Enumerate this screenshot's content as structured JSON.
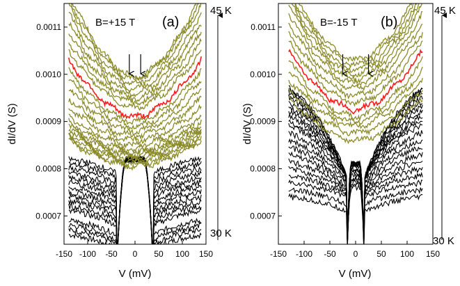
{
  "chart_data": [
    {
      "panel_label": "(a)",
      "type": "line",
      "field_label": "B=+15 T",
      "xlabel": "V (mV)",
      "ylabel": "dI/dV (S)",
      "xlim": [
        -150,
        150
      ],
      "ylim": [
        0.00064,
        0.00115
      ],
      "x_ticks": [
        -150,
        -100,
        -50,
        0,
        50,
        100,
        150
      ],
      "x_tick_labels": [
        "-150",
        "-100",
        "-50",
        "0",
        "50",
        "100",
        "150"
      ],
      "y_ticks": [
        0.0007,
        0.0008,
        0.0009,
        0.001,
        0.0011
      ],
      "y_tick_labels": [
        "0.0007",
        "0.0008",
        "0.0009",
        "0.0010",
        "0.0011"
      ],
      "temperature_top": "45 K",
      "temperature_bottom": "30 K",
      "arrows_x_mv": [
        -12,
        12
      ],
      "gap_half_width_mv": 40,
      "low_temp_curves": {
        "count": 16,
        "color": "#000000",
        "zero_bias_values": [
          0.00082,
          0.00082,
          0.00082,
          0.00082,
          0.00082,
          0.00082,
          0.00082,
          0.00082,
          0.00082,
          0.00082,
          0.00082,
          0.00082,
          0.00082,
          0.00082,
          0.00082,
          0.00082
        ],
        "edge_values": [
          0.00066,
          0.00067,
          0.00068,
          0.00069,
          0.00071,
          0.00072,
          0.00073,
          0.00074,
          0.00075,
          0.00076,
          0.00077,
          0.00078,
          0.00079,
          0.0008,
          0.00081,
          0.00082
        ]
      },
      "high_temp_curves": {
        "count": 23,
        "color": "#8b8b2b",
        "min_values": [
          0.000805,
          0.00081,
          0.000815,
          0.00082,
          0.000825,
          0.00083,
          0.000835,
          0.00084,
          0.00085,
          0.00086,
          0.00087,
          0.00088,
          0.00089,
          0.0009,
          0.00091,
          0.00093,
          0.00094,
          0.00095,
          0.00096,
          0.00097,
          0.00098,
          0.00099,
          0.000995
        ],
        "edge_values": [
          0.00086,
          0.000865,
          0.00087,
          0.000875,
          0.00088,
          0.000885,
          0.00089,
          0.0009,
          0.00091,
          0.00093,
          0.00095,
          0.00097,
          0.00099,
          0.00101,
          0.00103,
          0.00105,
          0.00107,
          0.00109,
          0.00111,
          0.00113,
          0.00115,
          0.00116,
          0.00117
        ],
        "highlight_index": 14,
        "highlight_color": "#ff1a1a"
      }
    },
    {
      "panel_label": "(b)",
      "type": "line",
      "field_label": "B=-15 T",
      "xlabel": "V (mV)",
      "ylabel": "dI/dV (S)",
      "xlim": [
        -150,
        150
      ],
      "ylim": [
        0.00064,
        0.00115
      ],
      "x_ticks": [
        -150,
        -100,
        -50,
        0,
        50,
        100,
        150
      ],
      "x_tick_labels": [
        "-150",
        "-100",
        "-50",
        "0",
        "50",
        "100",
        "150"
      ],
      "y_ticks": [
        0.0007,
        0.0008,
        0.0009,
        0.001,
        0.0011
      ],
      "y_tick_labels": [
        "0.0007",
        "0.0008",
        "0.0009",
        "0.0010",
        "0.0011"
      ],
      "temperature_top": "45 K",
      "temperature_bottom": "30 K",
      "arrows_x_mv": [
        -25,
        25
      ],
      "gap_half_width_mv": 18,
      "low_temp_curves": {
        "count": 20,
        "color": "#000000",
        "zero_bias_values": [
          0.00076,
          0.000765,
          0.00077,
          0.000775,
          0.00078,
          0.000785,
          0.00079,
          0.000795,
          0.0008,
          0.000805,
          0.00081,
          0.00081,
          0.00081,
          0.00081,
          0.00081,
          0.00081,
          0.00081,
          0.00081,
          0.00081,
          0.00081
        ],
        "edge_values": [
          0.00074,
          0.000755,
          0.00077,
          0.000785,
          0.0008,
          0.000815,
          0.00083,
          0.000845,
          0.00086,
          0.000875,
          0.00089,
          0.0009,
          0.00091,
          0.00092,
          0.00093,
          0.00094,
          0.00095,
          0.00096,
          0.000965,
          0.00097
        ],
        "highlight_index": -1
      },
      "high_temp_curves": {
        "count": 15,
        "color": "#8b8b2b",
        "min_values": [
          0.00086,
          0.000875,
          0.00089,
          0.0009,
          0.00091,
          0.000925,
          0.00094,
          0.000955,
          0.00097,
          0.00098,
          0.00099,
          0.001,
          0.00101,
          0.00102,
          0.00103
        ],
        "edge_values": [
          0.00095,
          0.00097,
          0.00099,
          0.00101,
          0.00103,
          0.00105,
          0.00107,
          0.00109,
          0.00111,
          0.00113,
          0.00115,
          0.00116,
          0.00117,
          0.00118,
          0.00119
        ],
        "highlight_index": 5,
        "highlight_color": "#ff1a1a"
      }
    }
  ]
}
